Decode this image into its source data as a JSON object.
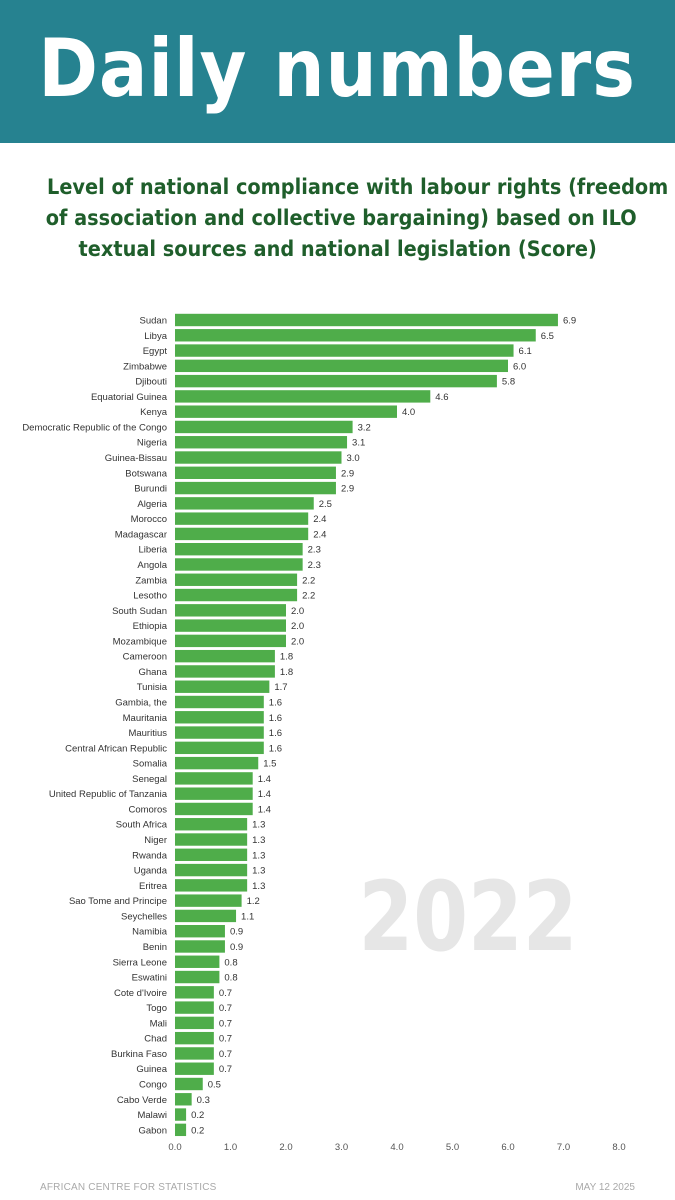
{
  "header": {
    "title": "Daily numbers"
  },
  "subtitle_lines": [
    "Level of national compliance with labour rights (freedom",
    "of association and collective bargaining) based on ILO",
    "textual sources and national legislation (Score)"
  ],
  "footer": {
    "source": "AFRICAN CENTRE FOR STATISTICS",
    "date": "MAY 12 2025"
  },
  "colors": {
    "header_bg": "#268290",
    "title_text": "#1f5e2b",
    "bar": "#4fad4a",
    "watermark": "#e6e6e6"
  },
  "chart_data": {
    "type": "bar",
    "orientation": "horizontal",
    "title": "Level of national compliance with labour rights (freedom of association and collective bargaining) based on ILO textual sources and national legislation (Score)",
    "year_label": "2022",
    "xlim": [
      0,
      8
    ],
    "xticks": [
      0,
      1,
      2,
      3,
      4,
      5,
      6,
      7,
      8
    ],
    "tick_labels": [
      "0.0",
      "1.0",
      "2.0",
      "3.0",
      "4.0",
      "5.0",
      "6.0",
      "7.0",
      "8.0"
    ],
    "grid": false,
    "categories": [
      "Sudan",
      "Libya",
      "Egypt",
      "Zimbabwe",
      "Djibouti",
      "Equatorial Guinea",
      "Kenya",
      "Democratic Republic of the Congo",
      "Nigeria",
      "Guinea-Bissau",
      "Botswana",
      "Burundi",
      "Algeria",
      "Morocco",
      "Madagascar",
      "Liberia",
      "Angola",
      "Zambia",
      "Lesotho",
      "South Sudan",
      "Ethiopia",
      "Mozambique",
      "Cameroon",
      "Ghana",
      "Tunisia",
      "Gambia, the",
      "Mauritania",
      "Mauritius",
      "Central African Republic",
      "Somalia",
      "Senegal",
      "United Republic of Tanzania",
      "Comoros",
      "South Africa",
      "Niger",
      "Rwanda",
      "Uganda",
      "Eritrea",
      "Sao Tome and Principe",
      "Seychelles",
      "Namibia",
      "Benin",
      "Sierra Leone",
      "Eswatini",
      "Cote d'Ivoire",
      "Togo",
      "Mali",
      "Chad",
      "Burkina Faso",
      "Guinea",
      "Congo",
      "Cabo Verde",
      "Malawi",
      "Gabon"
    ],
    "values": [
      6.9,
      6.5,
      6.1,
      6.0,
      5.8,
      4.6,
      4.0,
      3.2,
      3.1,
      3.0,
      2.9,
      2.9,
      2.5,
      2.4,
      2.4,
      2.3,
      2.3,
      2.2,
      2.2,
      2.0,
      2.0,
      2.0,
      1.8,
      1.8,
      1.7,
      1.6,
      1.6,
      1.6,
      1.6,
      1.5,
      1.4,
      1.4,
      1.4,
      1.3,
      1.3,
      1.3,
      1.3,
      1.3,
      1.2,
      1.1,
      0.9,
      0.9,
      0.8,
      0.8,
      0.7,
      0.7,
      0.7,
      0.7,
      0.7,
      0.7,
      0.5,
      0.3,
      0.2,
      0.2
    ],
    "value_labels": [
      "6.9",
      "6.5",
      "6.1",
      "6.0",
      "5.8",
      "4.6",
      "4.0",
      "3.2",
      "3.1",
      "3.0",
      "2.9",
      "2.9",
      "2.5",
      "2.4",
      "2.4",
      "2.3",
      "2.3",
      "2.2",
      "2.2",
      "2.0",
      "2.0",
      "2.0",
      "1.8",
      "1.8",
      "1.7",
      "1.6",
      "1.6",
      "1.6",
      "1.6",
      "1.5",
      "1.4",
      "1.4",
      "1.4",
      "1.3",
      "1.3",
      "1.3",
      "1.3",
      "1.3",
      "1.2",
      "1.1",
      "0.9",
      "0.9",
      "0.8",
      "0.8",
      "0.7",
      "0.7",
      "0.7",
      "0.7",
      "0.7",
      "0.7",
      "0.5",
      "0.3",
      "0.2",
      "0.2"
    ]
  }
}
